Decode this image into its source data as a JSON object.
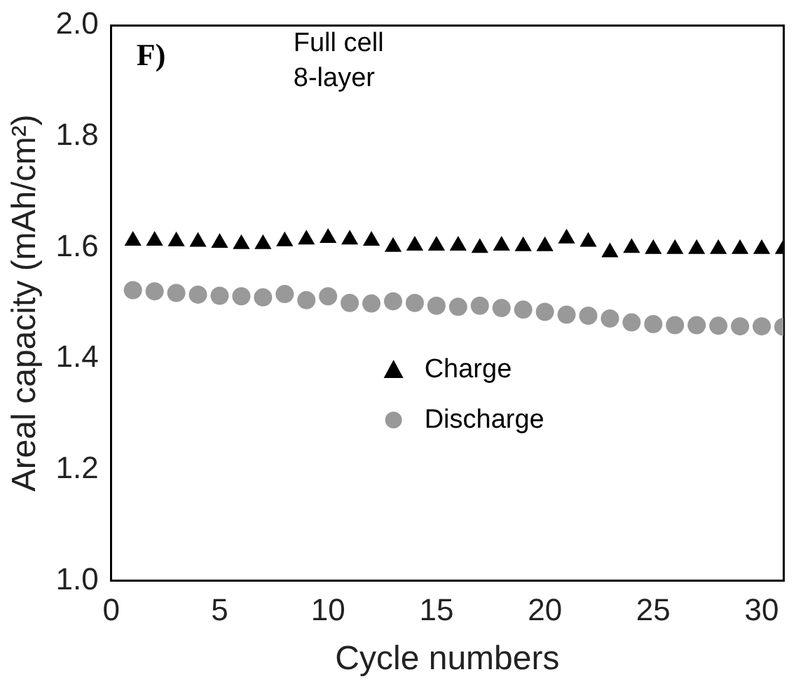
{
  "chart_data": {
    "type": "scatter",
    "xlabel": "Cycle numbers",
    "ylabel": "Areal capacity (mAh/cm²)",
    "annotations": [
      "F)",
      "Full cell\n8-layer"
    ],
    "x": [
      1,
      2,
      3,
      4,
      5,
      6,
      7,
      8,
      9,
      10,
      11,
      12,
      13,
      14,
      15,
      16,
      17,
      18,
      19,
      20,
      21,
      22,
      23,
      24,
      25,
      26,
      27,
      28,
      29,
      30,
      31
    ],
    "series": [
      {
        "name": "Charge",
        "color": "#000000",
        "marker": "triangle",
        "values": [
          1.612,
          1.612,
          1.611,
          1.61,
          1.608,
          1.606,
          1.606,
          1.611,
          1.614,
          1.617,
          1.614,
          1.612,
          1.601,
          1.603,
          1.603,
          1.603,
          1.599,
          1.603,
          1.602,
          1.602,
          1.616,
          1.61,
          1.591,
          1.599,
          1.597,
          1.597,
          1.597,
          1.597,
          1.597,
          1.597,
          1.597
        ]
      },
      {
        "name": "Discharge",
        "color": "#999999",
        "marker": "circle",
        "values": [
          1.523,
          1.521,
          1.518,
          1.515,
          1.513,
          1.512,
          1.51,
          1.516,
          1.505,
          1.512,
          1.5,
          1.499,
          1.503,
          1.5,
          1.495,
          1.493,
          1.495,
          1.491,
          1.488,
          1.484,
          1.479,
          1.477,
          1.472,
          1.465,
          1.462,
          1.46,
          1.46,
          1.459,
          1.458,
          1.458,
          1.457
        ]
      }
    ],
    "xlim": [
      0,
      31
    ],
    "xticks": [
      0,
      5,
      10,
      15,
      20,
      25,
      30
    ],
    "ylim": [
      1,
      2
    ],
    "yticks": [
      {
        "value": 1,
        "label": "1.0"
      },
      1.2,
      1.4,
      1.6,
      1.8,
      {
        "value": 2,
        "label": "2.0"
      }
    ],
    "grid": false,
    "legend": "center"
  }
}
